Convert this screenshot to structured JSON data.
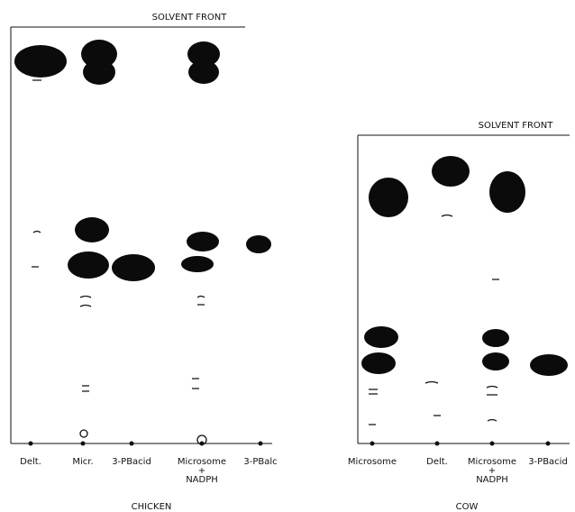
{
  "left_panel": {
    "solvent_front": "SOLVENT FRONT",
    "lanes": [
      [
        "Delt."
      ],
      [
        "Micr."
      ],
      [
        "3-PBacid"
      ],
      [
        "Microsome",
        "+",
        "NADPH"
      ],
      [
        "3-PBalc"
      ]
    ],
    "caption": "CHICKEN"
  },
  "right_panel": {
    "solvent_front": "SOLVENT FRONT",
    "lanes": [
      [
        "Microsome"
      ],
      [
        "Delt."
      ],
      [
        "Microsome",
        "+",
        "NADPH"
      ],
      [
        "3-PBacid"
      ]
    ],
    "caption": "COW"
  }
}
